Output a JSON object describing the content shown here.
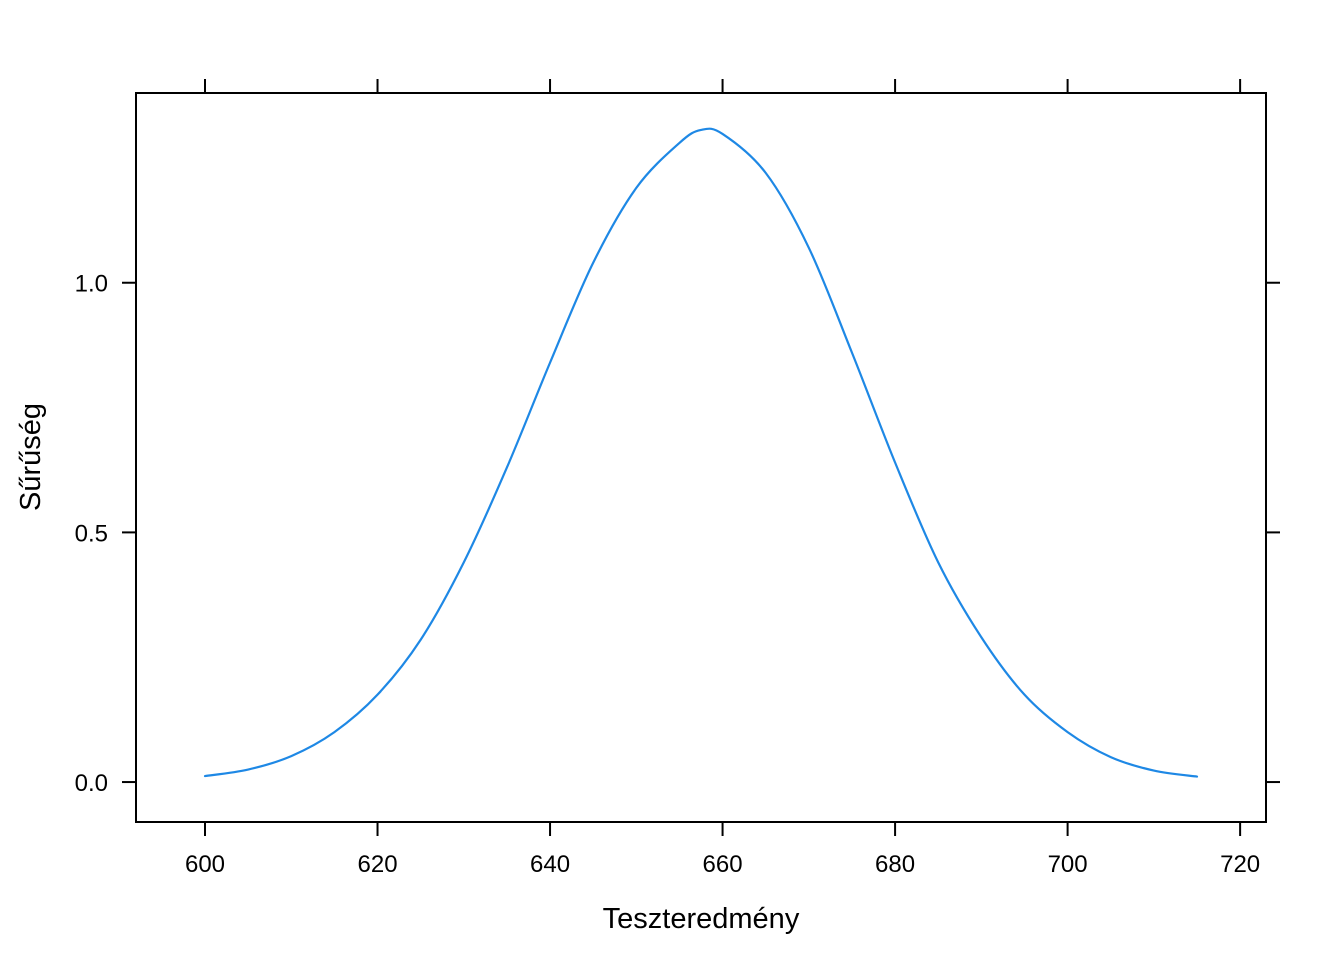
{
  "chart_data": {
    "type": "line",
    "title": "",
    "xlabel": "Teszteredmény",
    "ylabel": "Sűrűség",
    "xlim": [
      592,
      723
    ],
    "ylim": [
      -0.08,
      1.38
    ],
    "x_ticks": [
      600,
      620,
      640,
      660,
      680,
      700,
      720
    ],
    "x_tick_labels": [
      "600",
      "620",
      "640",
      "660",
      "680",
      "700",
      "720"
    ],
    "y_ticks": [
      0.0,
      0.5,
      1.0
    ],
    "y_tick_labels": [
      "0.0",
      "0.5",
      "1.0"
    ],
    "grid": false,
    "legend": "none",
    "line_color": "#1e88e5",
    "series": [
      {
        "x": [
          600,
          605,
          610,
          615,
          620,
          625,
          630,
          635,
          640,
          645,
          650,
          655,
          657.5,
          660,
          665,
          670,
          675,
          680,
          685,
          690,
          695,
          700,
          705,
          710,
          715
        ],
        "y": [
          0.012,
          0.025,
          0.052,
          0.1,
          0.175,
          0.285,
          0.44,
          0.63,
          0.84,
          1.04,
          1.19,
          1.28,
          1.306,
          1.298,
          1.22,
          1.07,
          0.86,
          0.64,
          0.44,
          0.29,
          0.175,
          0.1,
          0.05,
          0.023,
          0.011
        ]
      }
    ]
  }
}
